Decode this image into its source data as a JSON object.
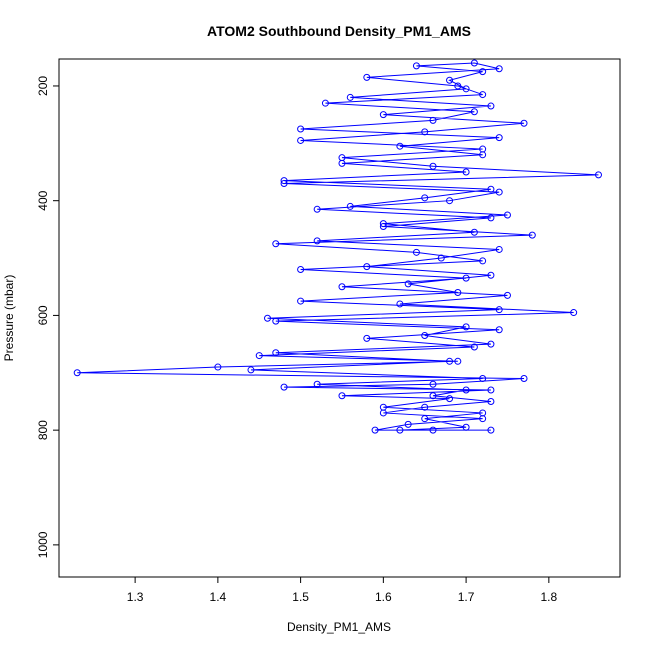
{
  "chart_data": {
    "type": "line",
    "title": "ATOM2 Southbound Density_PM1_AMS",
    "x_label": "Density_PM1_AMS",
    "y_label": "Pressure (mbar)",
    "x": [
      1.62,
      1.7,
      1.65,
      1.72,
      1.6,
      1.68,
      1.55,
      1.73,
      1.48,
      1.66,
      1.77,
      1.23,
      1.4,
      1.69,
      1.45,
      1.71,
      1.58,
      1.74,
      1.47,
      1.83,
      1.62,
      1.75,
      1.55,
      1.7,
      1.5,
      1.72,
      1.64,
      1.47,
      1.78,
      1.6,
      1.73,
      1.52,
      1.68,
      1.74,
      1.48,
      1.86,
      1.66,
      1.55,
      1.72,
      1.5,
      1.65,
      1.77,
      1.6,
      1.73,
      1.56,
      1.7,
      1.68,
      1.72,
      1.64,
      1.71,
      1.74,
      1.58,
      1.69,
      1.72,
      1.53,
      1.71,
      1.66,
      1.5,
      1.74,
      1.62,
      1.72,
      1.55,
      1.7,
      1.48,
      1.73,
      1.65,
      1.56,
      1.75,
      1.6,
      1.71,
      1.52,
      1.74,
      1.67,
      1.58,
      1.73,
      1.63,
      1.69,
      1.5,
      1.74,
      1.46,
      1.7,
      1.65,
      1.73,
      1.47,
      1.68,
      1.44,
      1.72,
      1.52,
      1.7,
      1.66,
      1.73,
      1.65,
      1.6,
      1.72,
      1.63,
      1.59,
      1.73,
      1.66
    ],
    "series": [
      {
        "color": "#0000ff",
        "values": [
          800,
          795,
          780,
          770,
          760,
          745,
          740,
          730,
          725,
          720,
          710,
          700,
          690,
          680,
          670,
          655,
          640,
          625,
          610,
          595,
          580,
          565,
          550,
          535,
          520,
          505,
          490,
          475,
          460,
          445,
          430,
          415,
          400,
          385,
          370,
          355,
          340,
          325,
          310,
          295,
          280,
          265,
          250,
          235,
          220,
          205,
          190,
          175,
          165,
          160,
          170,
          185,
          200,
          215,
          230,
          245,
          260,
          275,
          290,
          305,
          320,
          335,
          350,
          365,
          380,
          395,
          410,
          425,
          440,
          455,
          470,
          485,
          500,
          515,
          530,
          545,
          560,
          575,
          590,
          605,
          620,
          635,
          650,
          665,
          680,
          695,
          710,
          720,
          730,
          740,
          750,
          760,
          770,
          780,
          790,
          800,
          800,
          800
        ]
      }
    ],
    "xlim": [
      1.208,
      1.886
    ],
    "ylim": [
      1056,
      153
    ],
    "xticks": [
      1.3,
      1.4,
      1.5,
      1.6,
      1.7,
      1.8
    ],
    "yticks": [
      200,
      400,
      600,
      800,
      1000
    ]
  }
}
